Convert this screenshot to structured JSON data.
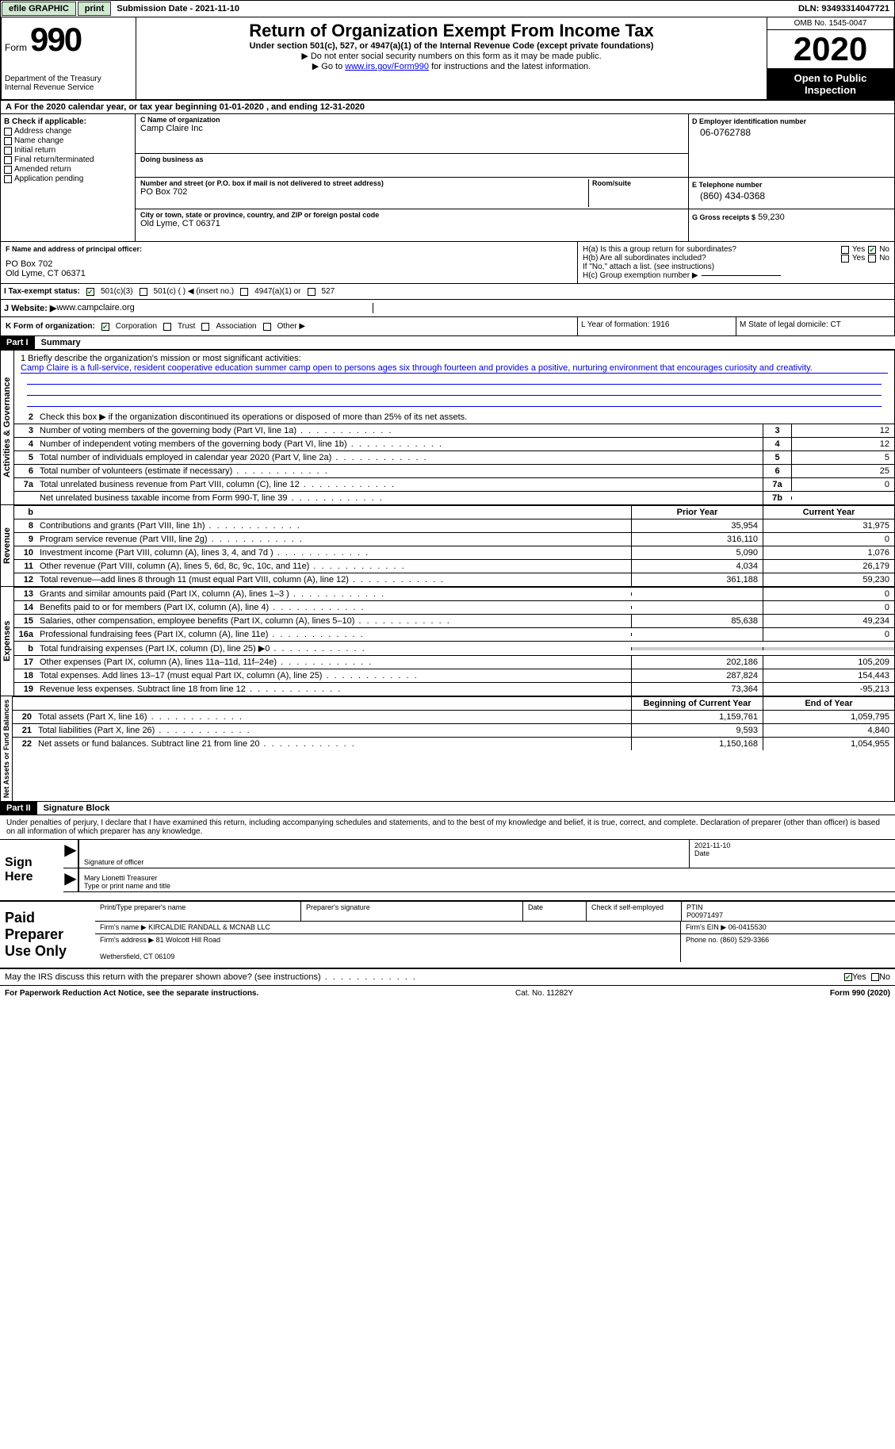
{
  "topbar": {
    "efile": "efile GRAPHIC",
    "print": "print",
    "subdate_label": "Submission Date - ",
    "subdate": "2021-11-10",
    "dln_label": "DLN: ",
    "dln": "93493314047721"
  },
  "header": {
    "form": "Form",
    "num": "990",
    "dept": "Department of the Treasury\nInternal Revenue Service",
    "title": "Return of Organization Exempt From Income Tax",
    "subtitle": "Under section 501(c), 527, or 4947(a)(1) of the Internal Revenue Code (except private foundations)",
    "note1": "Do not enter social security numbers on this form as it may be made public.",
    "note2_pre": "Go to ",
    "note2_link": "www.irs.gov/Form990",
    "note2_post": " for instructions and the latest information.",
    "omb": "OMB No. 1545-0047",
    "year": "2020",
    "inspect": "Open to Public Inspection"
  },
  "rowA": "For the 2020 calendar year, or tax year beginning 01-01-2020    , and ending 12-31-2020",
  "boxB": {
    "label": "B Check if applicable:",
    "items": [
      "Address change",
      "Name change",
      "Initial return",
      "Final return/terminated",
      "Amended return",
      "Application pending"
    ]
  },
  "boxC": {
    "label": "C Name of organization",
    "name": "Camp Claire Inc",
    "dba": "Doing business as",
    "street_label": "Number and street (or P.O. box if mail is not delivered to street address)",
    "street": "PO Box 702",
    "room": "Room/suite",
    "city_label": "City or town, state or province, country, and ZIP or foreign postal code",
    "city": "Old Lyme, CT  06371"
  },
  "boxD": {
    "label": "D Employer identification number",
    "val": "06-0762788"
  },
  "boxE": {
    "label": "E Telephone number",
    "val": "(860) 434-0368"
  },
  "boxG": {
    "label": "G Gross receipts $",
    "val": "59,230"
  },
  "boxF": {
    "label": "F Name and address of principal officer:",
    "addr1": "PO Box 702",
    "addr2": "Old Lyme, CT  06371"
  },
  "boxH": {
    "a": "H(a)  Is this a group return for subordinates?",
    "b": "H(b)  Are all subordinates included?",
    "note": "If \"No,\" attach a list. (see instructions)",
    "c": "H(c)  Group exemption number ▶",
    "yes": "Yes",
    "no": "No"
  },
  "status": {
    "label": "I    Tax-exempt status:",
    "o1": "501(c)(3)",
    "o2": "501(c) (  ) ◀ (insert no.)",
    "o3": "4947(a)(1) or",
    "o4": "527"
  },
  "website": {
    "label": "J   Website: ▶ ",
    "val": "www.campclaire.org"
  },
  "boxK": {
    "label": "K Form of organization:",
    "o1": "Corporation",
    "o2": "Trust",
    "o3": "Association",
    "o4": "Other ▶"
  },
  "boxL": "L Year of formation: 1916",
  "boxM": "M State of legal domicile: CT",
  "part1": {
    "hdr": "Part I",
    "title": "Summary"
  },
  "mission": {
    "label": "1   Briefly describe the organization's mission or most significant activities:",
    "text": "Camp Claire is a full-service, resident cooperative education summer camp open to persons ages six through fourteen and provides a positive, nurturing environment that encourages curiosity and creativity."
  },
  "gov": {
    "l2": "Check this box ▶    if the organization discontinued its operations or disposed of more than 25% of its net assets.",
    "rows": [
      {
        "n": "3",
        "d": "Number of voting members of the governing body (Part VI, line 1a)",
        "box": "3",
        "v": "12"
      },
      {
        "n": "4",
        "d": "Number of independent voting members of the governing body (Part VI, line 1b)",
        "box": "4",
        "v": "12"
      },
      {
        "n": "5",
        "d": "Total number of individuals employed in calendar year 2020 (Part V, line 2a)",
        "box": "5",
        "v": "5"
      },
      {
        "n": "6",
        "d": "Total number of volunteers (estimate if necessary)",
        "box": "6",
        "v": "25"
      },
      {
        "n": "7a",
        "d": "Total unrelated business revenue from Part VIII, column (C), line 12",
        "box": "7a",
        "v": "0"
      },
      {
        "n": "",
        "d": "Net unrelated business taxable income from Form 990-T, line 39",
        "box": "7b",
        "v": ""
      }
    ]
  },
  "cols": {
    "b": "b",
    "prior": "Prior Year",
    "current": "Current Year",
    "bcy": "Beginning of Current Year",
    "eoy": "End of Year"
  },
  "rev": [
    {
      "n": "8",
      "d": "Contributions and grants (Part VIII, line 1h)",
      "p": "35,954",
      "c": "31,975"
    },
    {
      "n": "9",
      "d": "Program service revenue (Part VIII, line 2g)",
      "p": "316,110",
      "c": "0"
    },
    {
      "n": "10",
      "d": "Investment income (Part VIII, column (A), lines 3, 4, and 7d )",
      "p": "5,090",
      "c": "1,076"
    },
    {
      "n": "11",
      "d": "Other revenue (Part VIII, column (A), lines 5, 6d, 8c, 9c, 10c, and 11e)",
      "p": "4,034",
      "c": "26,179"
    },
    {
      "n": "12",
      "d": "Total revenue—add lines 8 through 11 (must equal Part VIII, column (A), line 12)",
      "p": "361,188",
      "c": "59,230"
    }
  ],
  "exp": [
    {
      "n": "13",
      "d": "Grants and similar amounts paid (Part IX, column (A), lines 1–3 )",
      "p": "",
      "c": "0"
    },
    {
      "n": "14",
      "d": "Benefits paid to or for members (Part IX, column (A), line 4)",
      "p": "",
      "c": "0"
    },
    {
      "n": "15",
      "d": "Salaries, other compensation, employee benefits (Part IX, column (A), lines 5–10)",
      "p": "85,638",
      "c": "49,234"
    },
    {
      "n": "16a",
      "d": "Professional fundraising fees (Part IX, column (A), line 11e)",
      "p": "",
      "c": "0"
    },
    {
      "n": "b",
      "d": "Total fundraising expenses (Part IX, column (D), line 25) ▶0",
      "p": "GREY",
      "c": "GREY"
    },
    {
      "n": "17",
      "d": "Other expenses (Part IX, column (A), lines 11a–11d, 11f–24e)",
      "p": "202,186",
      "c": "105,209"
    },
    {
      "n": "18",
      "d": "Total expenses. Add lines 13–17 (must equal Part IX, column (A), line 25)",
      "p": "287,824",
      "c": "154,443"
    },
    {
      "n": "19",
      "d": "Revenue less expenses. Subtract line 18 from line 12",
      "p": "73,364",
      "c": "-95,213"
    }
  ],
  "net": [
    {
      "n": "20",
      "d": "Total assets (Part X, line 16)",
      "p": "1,159,761",
      "c": "1,059,795"
    },
    {
      "n": "21",
      "d": "Total liabilities (Part X, line 26)",
      "p": "9,593",
      "c": "4,840"
    },
    {
      "n": "22",
      "d": "Net assets or fund balances. Subtract line 21 from line 20",
      "p": "1,150,168",
      "c": "1,054,955"
    }
  ],
  "vtabs": {
    "gov": "Activities & Governance",
    "rev": "Revenue",
    "exp": "Expenses",
    "net": "Net Assets or Fund Balances"
  },
  "part2": {
    "hdr": "Part II",
    "title": "Signature Block"
  },
  "penalty": "Under penalties of perjury, I declare that I have examined this return, including accompanying schedules and statements, and to the best of my knowledge and belief, it is true, correct, and complete. Declaration of preparer (other than officer) is based on all information of which preparer has any knowledge.",
  "sign": {
    "here": "Sign Here",
    "sigoff": "Signature of officer",
    "date": "Date",
    "sigdate": "2021-11-10",
    "name": "Mary Lionetti  Treasurer",
    "typeprint": "Type or print name and title"
  },
  "prep": {
    "label": "Paid Preparer Use Only",
    "r1": [
      "Print/Type preparer's name",
      "Preparer's signature",
      "Date",
      "Check      if self-employed",
      "PTIN\nP00971497"
    ],
    "r2l": "Firm's name    ▶ ",
    "r2v": "KIRCALDIE RANDALL & MCNAB LLC",
    "r2r": "Firm's EIN ▶  06-0415530",
    "r3l": "Firm's address ▶ ",
    "r3v": "81 Wolcott Hill Road\n\nWethersfield, CT  06109",
    "r3r": "Phone no. (860) 529-3366"
  },
  "discuss": "May the IRS discuss this return with the preparer shown above? (see instructions)",
  "footer": {
    "left": "For Paperwork Reduction Act Notice, see the separate instructions.",
    "mid": "Cat. No. 11282Y",
    "right": "Form 990 (2020)"
  }
}
